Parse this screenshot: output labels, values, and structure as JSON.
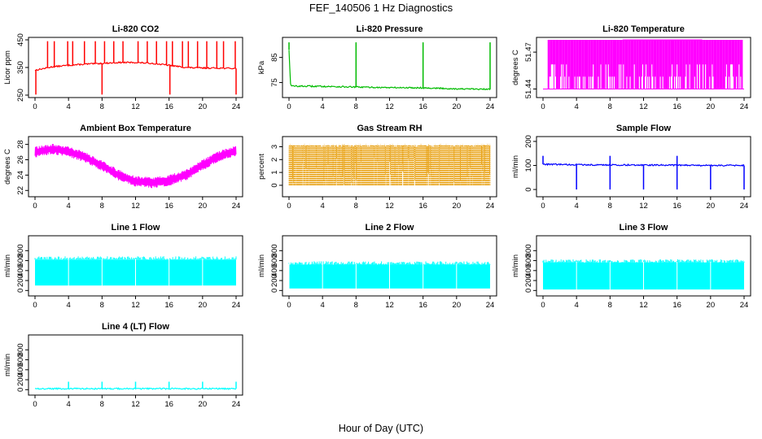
{
  "figure": {
    "title": "FEF_140506  1 Hz Diagnostics",
    "xlabel": "Hour of Day (UTC)"
  },
  "colors": {
    "red": "#ff0000",
    "green": "#00bb00",
    "magenta": "#ff00ff",
    "orange": "#e69a00",
    "blue": "#0000ff",
    "cyan": "#00ffff"
  },
  "chart_data": [
    {
      "id": "co2",
      "type": "line",
      "title": "Li-820 CO2",
      "ylabel": "Licor ppm",
      "color": "red",
      "xlim": [
        0,
        24
      ],
      "ylim": [
        250,
        450
      ],
      "xticks": [
        "0",
        "4",
        "8",
        "12",
        "16",
        "20",
        "24"
      ],
      "yticks": [
        "250",
        "350",
        "450"
      ],
      "series": [
        {
          "x": [
            0,
            2,
            4,
            6,
            8,
            10,
            12,
            14,
            16,
            18,
            20,
            22,
            24
          ],
          "y": [
            340,
            352,
            358,
            362,
            365,
            368,
            368,
            365,
            358,
            350,
            348,
            348,
            346
          ]
        }
      ],
      "spikes_up": [
        {
          "x": [
            1.5,
            2.3,
            3.9,
            4.5,
            5.9,
            7.2,
            8.3,
            9.4,
            10.5,
            12.3,
            13.4,
            14.5,
            15.7,
            16.4,
            17.6,
            18.3,
            19.4,
            20.5,
            21.7,
            22.5,
            23.9
          ],
          "to": 445
        }
      ],
      "spikes_down": [
        {
          "x": [
            0.1,
            8.0,
            16.1,
            24.0
          ],
          "to": 252
        }
      ]
    },
    {
      "id": "pressure",
      "type": "line",
      "title": "Li-820 Pressure",
      "ylabel": "kPa",
      "color": "green",
      "xlim": [
        0,
        24
      ],
      "ylim": [
        70,
        92
      ],
      "xticks": [
        "0",
        "4",
        "8",
        "12",
        "16",
        "20",
        "24"
      ],
      "yticks": [
        "75",
        "85"
      ],
      "series": [
        {
          "x": [
            0,
            0.2,
            4,
            8,
            12,
            16,
            20,
            24
          ],
          "y": [
            88,
            73.6,
            73.5,
            73.2,
            73.0,
            72.9,
            72.5,
            72.3
          ]
        }
      ],
      "spikes_up": [
        {
          "x": [
            0.0,
            8.0,
            16.0,
            24.0
          ],
          "to": 91
        }
      ]
    },
    {
      "id": "licor_temp",
      "type": "step",
      "title": "Li-820 Temperature",
      "ylabel": "degrees C",
      "color": "magenta",
      "xlim": [
        0,
        24
      ],
      "ylim": [
        51.435,
        51.48
      ],
      "xticks": [
        "0",
        "4",
        "8",
        "12",
        "16",
        "20",
        "24"
      ],
      "yticks": [
        "51.44",
        "51.47"
      ],
      "levels": [
        51.44,
        51.45,
        51.46,
        51.47,
        51.48
      ],
      "series": [
        {
          "x": [
            0,
            5,
            6,
            7,
            9.5,
            11,
            19,
            20.5,
            22.5,
            24
          ],
          "y": [
            51.44,
            51.45,
            51.46,
            51.47,
            51.48,
            51.48,
            51.48,
            51.47,
            51.45,
            51.44
          ]
        }
      ]
    },
    {
      "id": "box_temp",
      "type": "line",
      "title": "Ambient Box Temperature",
      "ylabel": "degrees C",
      "color": "magenta",
      "xlim": [
        0,
        24
      ],
      "ylim": [
        21.5,
        28.7
      ],
      "xticks": [
        "0",
        "4",
        "8",
        "12",
        "16",
        "20",
        "24"
      ],
      "yticks": [
        "22",
        "24",
        "26",
        "28"
      ],
      "series": [
        {
          "x": [
            0,
            2,
            4,
            6,
            8,
            10,
            12,
            14,
            16,
            18,
            20,
            22,
            24
          ],
          "y": [
            27.0,
            27.4,
            27.1,
            26.3,
            25.2,
            24.0,
            23.2,
            23.0,
            23.3,
            24.0,
            25.3,
            26.5,
            27.2
          ]
        }
      ],
      "band": 0.7
    },
    {
      "id": "rh",
      "type": "scatter",
      "title": "Gas Stream RH",
      "ylabel": "percent",
      "color": "orange",
      "xlim": [
        0,
        24
      ],
      "ylim": [
        -0.7,
        3.6
      ],
      "xticks": [
        "0",
        "4",
        "8",
        "12",
        "16",
        "20",
        "24"
      ],
      "yticks": [
        "0",
        "1",
        "2",
        "3"
      ],
      "series": [
        {
          "x": [
            0,
            24
          ],
          "y_range": [
            0,
            3.2
          ]
        }
      ]
    },
    {
      "id": "sample_flow",
      "type": "line",
      "title": "Sample Flow",
      "ylabel": "ml/min",
      "color": "blue",
      "xlim": [
        0,
        24
      ],
      "ylim": [
        -20,
        210
      ],
      "xticks": [
        "0",
        "4",
        "8",
        "12",
        "16",
        "20",
        "24"
      ],
      "yticks": [
        "0",
        "100",
        "200"
      ],
      "series": [
        {
          "x": [
            0,
            4,
            8,
            12,
            16,
            20,
            24
          ],
          "y": [
            105,
            103,
            102,
            102,
            101,
            100,
            100
          ]
        }
      ],
      "spikes_down": [
        {
          "x": [
            4.0,
            8.0,
            12.0,
            16.0,
            20.0,
            24.0
          ],
          "to": 0
        }
      ],
      "spikes_up": [
        {
          "x": [
            0.0,
            8.0,
            16.0
          ],
          "to": 140
        }
      ]
    },
    {
      "id": "line1",
      "type": "area",
      "title": "Line 1 Flow",
      "ylabel": "ml/min",
      "color": "cyan",
      "xlim": [
        0,
        24
      ],
      "ylim": [
        -60,
        1050
      ],
      "xticks": [
        "0",
        "4",
        "8",
        "12",
        "16",
        "20",
        "24"
      ],
      "yticks": [
        "0",
        "200",
        "400",
        "600",
        "800"
      ],
      "series": [
        {
          "x": [
            0,
            24
          ],
          "low": 100,
          "high": 620
        }
      ],
      "gaps": [
        4.0,
        8.0,
        12.0,
        16.0,
        20.0
      ]
    },
    {
      "id": "line2",
      "type": "area",
      "title": "Line 2 Flow",
      "ylabel": "ml/min",
      "color": "cyan",
      "xlim": [
        0,
        24
      ],
      "ylim": [
        -60,
        1050
      ],
      "xticks": [
        "0",
        "4",
        "8",
        "12",
        "16",
        "20",
        "24"
      ],
      "yticks": [
        "0",
        "200",
        "400",
        "600",
        "800"
      ],
      "series": [
        {
          "x": [
            0,
            24
          ],
          "low": 40,
          "high": 520
        }
      ],
      "gaps": [
        0.0,
        4.0,
        8.0,
        12.0,
        16.0,
        20.0
      ]
    },
    {
      "id": "line3",
      "type": "area",
      "title": "Line 3 Flow",
      "ylabel": "ml/min",
      "color": "cyan",
      "xlim": [
        0,
        24
      ],
      "ylim": [
        -60,
        1050
      ],
      "xticks": [
        "0",
        "4",
        "8",
        "12",
        "16",
        "20",
        "24"
      ],
      "yticks": [
        "0",
        "200",
        "400",
        "600",
        "800"
      ],
      "series": [
        {
          "x": [
            0,
            24
          ],
          "low": 20,
          "high": 560
        }
      ],
      "gaps": [
        4.0,
        8.0,
        12.0,
        16.0,
        20.0
      ]
    },
    {
      "id": "line4",
      "type": "line",
      "title": "Line 4 (LT) Flow",
      "ylabel": "ml/min",
      "color": "cyan",
      "xlim": [
        0,
        24
      ],
      "ylim": [
        -60,
        1050
      ],
      "xticks": [
        "0",
        "4",
        "8",
        "12",
        "16",
        "20",
        "24"
      ],
      "yticks": [
        "0",
        "200",
        "400",
        "600",
        "800"
      ],
      "series": [
        {
          "x": [
            0,
            24
          ],
          "y": [
            20,
            20
          ]
        }
      ],
      "spikes_up": [
        {
          "x": [
            4.0,
            8.0,
            12.0,
            16.0,
            20.0,
            24.0
          ],
          "to": 160
        }
      ]
    }
  ]
}
